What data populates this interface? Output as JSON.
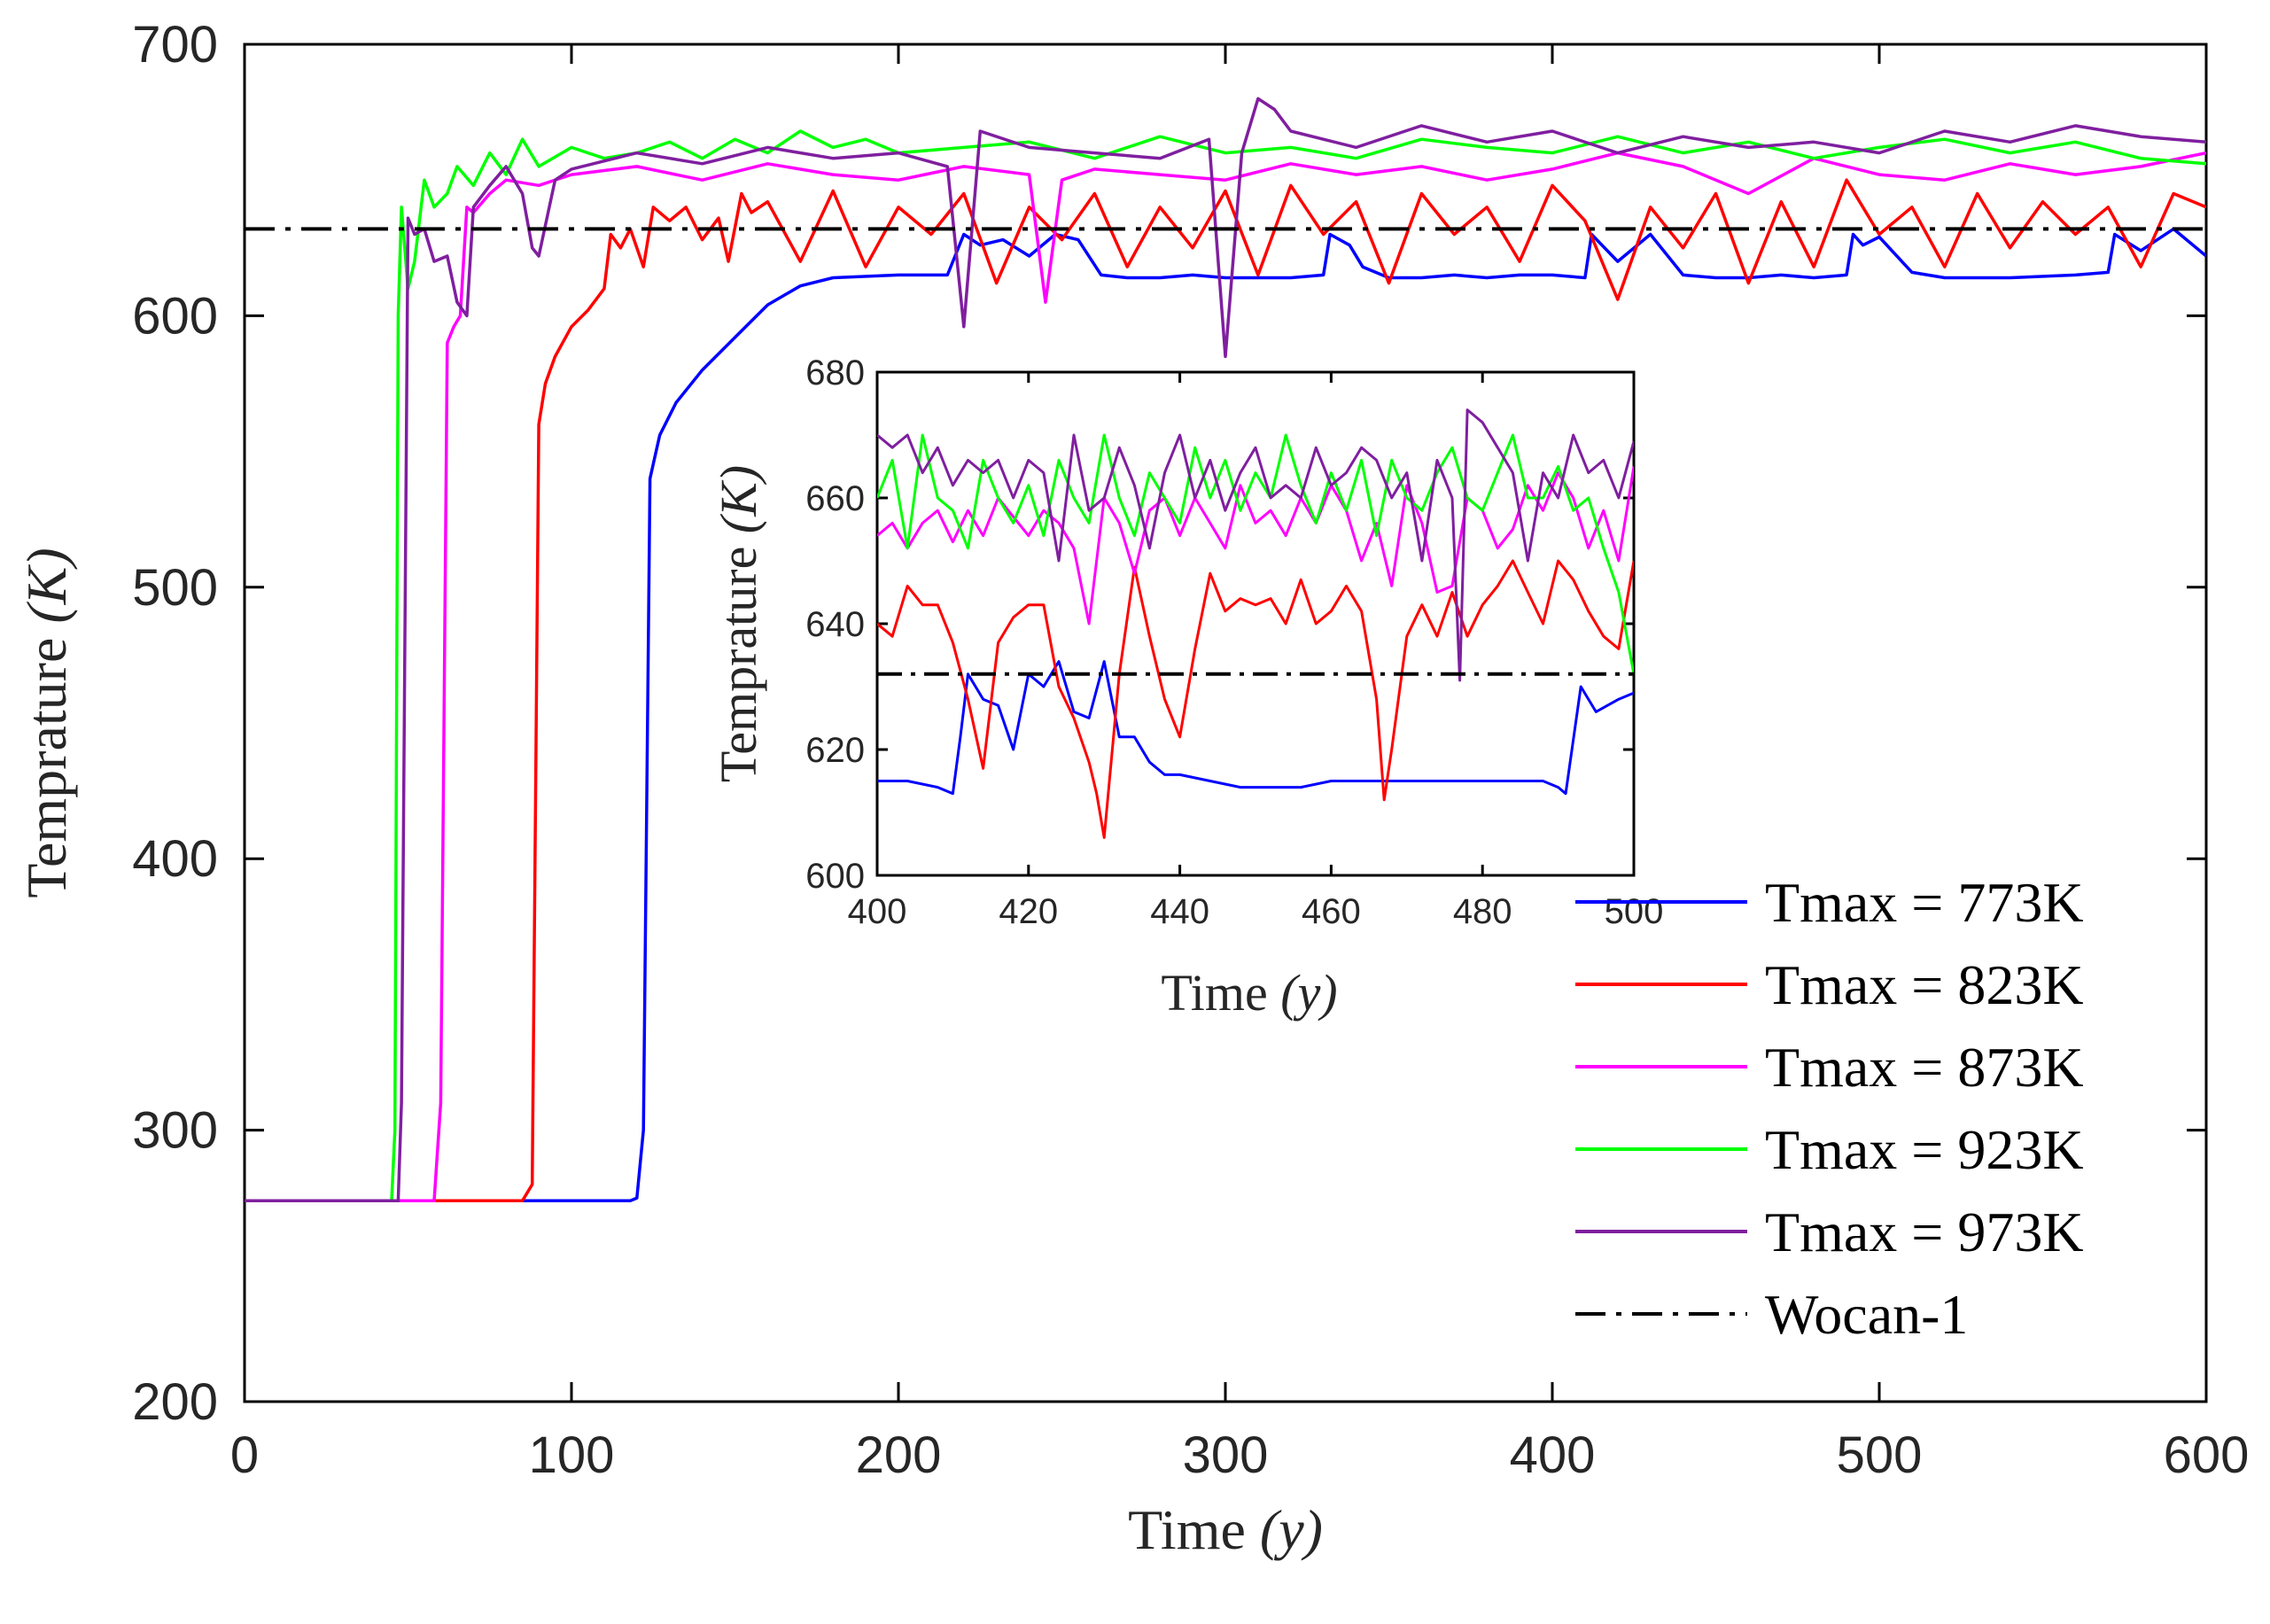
{
  "chart_data": [
    {
      "type": "line",
      "xlabel": "Time",
      "xlabel_unit": "(y)",
      "ylabel": "Temprature",
      "ylabel_unit": "(K)",
      "xlim": [
        0,
        600
      ],
      "ylim": [
        200,
        700
      ],
      "xticks": [
        0,
        100,
        200,
        300,
        400,
        500,
        600
      ],
      "yticks": [
        200,
        300,
        400,
        500,
        600,
        700
      ],
      "grid": false,
      "legend_position": "bottom-right",
      "reference_line": {
        "name": "Wocan-1",
        "y": 632,
        "color": "#000000",
        "style": "dash-dot"
      },
      "series": [
        {
          "name": "Tmax = 773K",
          "color": "#0000ff",
          "x": [
            0,
            118,
            120,
            122,
            124,
            127,
            132,
            140,
            150,
            160,
            170,
            180,
            200,
            215,
            220,
            225,
            232,
            240,
            248,
            255,
            262,
            270,
            280,
            290,
            300,
            320,
            330,
            332,
            338,
            342,
            350,
            360,
            370,
            380,
            390,
            400,
            410,
            412,
            420,
            430,
            440,
            450,
            460,
            470,
            480,
            490,
            492,
            495,
            500,
            510,
            520,
            540,
            560,
            570,
            572,
            580,
            590,
            600
          ],
          "y": [
            274,
            274,
            275,
            300,
            540,
            556,
            568,
            580,
            592,
            604,
            611,
            614,
            615,
            615,
            630,
            626,
            628,
            622,
            630,
            628,
            615,
            614,
            614,
            615,
            614,
            614,
            615,
            630,
            626,
            618,
            614,
            614,
            615,
            614,
            615,
            615,
            614,
            630,
            620,
            630,
            615,
            614,
            614,
            615,
            614,
            615,
            630,
            626,
            629,
            616,
            614,
            614,
            615,
            616,
            630,
            624,
            632,
            622
          ]
        },
        {
          "name": "Tmax = 823K",
          "color": "#ff0000",
          "x": [
            0,
            85,
            88,
            90,
            92,
            95,
            100,
            105,
            110,
            112,
            115,
            118,
            122,
            125,
            130,
            135,
            140,
            145,
            148,
            152,
            155,
            160,
            170,
            180,
            190,
            200,
            210,
            220,
            230,
            240,
            250,
            260,
            270,
            280,
            290,
            300,
            310,
            320,
            330,
            340,
            350,
            360,
            370,
            380,
            390,
            400,
            410,
            420,
            430,
            440,
            450,
            460,
            470,
            480,
            490,
            500,
            510,
            520,
            530,
            540,
            550,
            560,
            570,
            580,
            590,
            600
          ],
          "y": [
            274,
            274,
            280,
            560,
            575,
            585,
            596,
            602,
            610,
            630,
            625,
            632,
            618,
            640,
            635,
            640,
            628,
            636,
            620,
            645,
            638,
            642,
            620,
            646,
            618,
            640,
            630,
            645,
            612,
            640,
            628,
            645,
            618,
            640,
            625,
            646,
            615,
            648,
            630,
            642,
            612,
            645,
            630,
            640,
            620,
            648,
            635,
            606,
            640,
            625,
            645,
            612,
            642,
            618,
            650,
            630,
            640,
            618,
            645,
            625,
            642,
            630,
            640,
            618,
            645,
            640
          ]
        },
        {
          "name": "Tmax = 873K",
          "color": "#ff00ff",
          "x": [
            0,
            58,
            60,
            62,
            64,
            66,
            68,
            70,
            75,
            80,
            90,
            100,
            120,
            140,
            160,
            180,
            200,
            220,
            240,
            245,
            250,
            260,
            280,
            300,
            320,
            340,
            360,
            380,
            400,
            420,
            440,
            460,
            480,
            500,
            520,
            540,
            560,
            580,
            600
          ],
          "y": [
            274,
            274,
            310,
            590,
            596,
            600,
            640,
            638,
            645,
            650,
            648,
            652,
            655,
            650,
            656,
            652,
            650,
            655,
            652,
            605,
            650,
            654,
            652,
            650,
            656,
            652,
            655,
            650,
            654,
            660,
            655,
            645,
            658,
            652,
            650,
            656,
            652,
            655,
            660
          ]
        },
        {
          "name": "Tmax = 923K",
          "color": "#00ff00",
          "x": [
            0,
            45,
            46,
            47,
            48,
            50,
            52,
            55,
            58,
            62,
            65,
            70,
            75,
            80,
            85,
            90,
            100,
            110,
            120,
            130,
            140,
            150,
            160,
            170,
            180,
            190,
            200,
            220,
            240,
            260,
            280,
            300,
            320,
            340,
            360,
            380,
            400,
            420,
            440,
            460,
            480,
            500,
            520,
            540,
            560,
            580,
            600
          ],
          "y": [
            274,
            274,
            300,
            600,
            640,
            610,
            620,
            650,
            640,
            645,
            655,
            648,
            660,
            652,
            665,
            655,
            662,
            658,
            660,
            664,
            658,
            665,
            660,
            668,
            662,
            665,
            660,
            662,
            664,
            658,
            666,
            660,
            662,
            658,
            665,
            662,
            660,
            666,
            660,
            664,
            658,
            662,
            665,
            660,
            664,
            658,
            656
          ]
        },
        {
          "name": "Tmax = 973K",
          "color": "#7f1f9f",
          "x": [
            0,
            47,
            48,
            50,
            52,
            55,
            58,
            62,
            65,
            68,
            70,
            75,
            80,
            85,
            88,
            90,
            95,
            100,
            120,
            140,
            160,
            180,
            200,
            215,
            220,
            225,
            240,
            260,
            280,
            295,
            300,
            305,
            310,
            315,
            320,
            340,
            360,
            380,
            400,
            420,
            440,
            460,
            480,
            500,
            520,
            540,
            560,
            580,
            600
          ],
          "y": [
            274,
            274,
            310,
            636,
            630,
            632,
            620,
            622,
            605,
            600,
            640,
            648,
            655,
            645,
            625,
            622,
            650,
            654,
            660,
            656,
            662,
            658,
            660,
            655,
            596,
            668,
            662,
            660,
            658,
            665,
            585,
            660,
            680,
            676,
            668,
            662,
            670,
            664,
            668,
            660,
            666,
            662,
            664,
            660,
            668,
            664,
            670,
            666,
            664
          ]
        }
      ]
    },
    {
      "type": "line",
      "xlabel": "Time",
      "xlabel_unit": "(y)",
      "ylabel": "Temprature",
      "ylabel_unit": "(K)",
      "xlim": [
        400,
        500
      ],
      "ylim": [
        600,
        680
      ],
      "xticks": [
        400,
        420,
        440,
        460,
        480,
        500
      ],
      "yticks": [
        600,
        620,
        640,
        660,
        680
      ],
      "grid": false,
      "reference_line": {
        "y": 632,
        "color": "#000000",
        "style": "dash-dot"
      },
      "series": [
        {
          "name": "Tmax = 773K",
          "color": "#0000ff",
          "x": [
            400,
            404,
            408,
            410,
            411,
            412,
            414,
            416,
            418,
            420,
            422,
            424,
            426,
            428,
            430,
            432,
            434,
            436,
            438,
            440,
            444,
            448,
            452,
            456,
            460,
            464,
            468,
            472,
            476,
            480,
            484,
            488,
            490,
            491,
            493,
            495,
            498,
            500
          ],
          "y": [
            615,
            615,
            614,
            613,
            622,
            632,
            628,
            627,
            620,
            632,
            630,
            634,
            626,
            625,
            634,
            622,
            622,
            618,
            616,
            616,
            615,
            614,
            614,
            614,
            615,
            615,
            615,
            615,
            615,
            615,
            615,
            615,
            614,
            613,
            630,
            626,
            628,
            629
          ]
        },
        {
          "name": "Tmax = 823K",
          "color": "#ff0000",
          "x": [
            400,
            402,
            404,
            406,
            408,
            410,
            412,
            414,
            416,
            418,
            420,
            422,
            424,
            426,
            428,
            429,
            430,
            432,
            434,
            436,
            438,
            440,
            442,
            444,
            446,
            448,
            450,
            452,
            454,
            456,
            458,
            460,
            462,
            464,
            466,
            467,
            468,
            470,
            472,
            474,
            476,
            478,
            480,
            482,
            484,
            486,
            488,
            490,
            492,
            494,
            496,
            498,
            500
          ],
          "y": [
            640,
            638,
            646,
            643,
            643,
            637,
            628,
            617,
            637,
            641,
            643,
            643,
            630,
            625,
            618,
            613,
            606,
            632,
            649,
            638,
            628,
            622,
            636,
            648,
            642,
            644,
            643,
            644,
            640,
            647,
            640,
            642,
            646,
            642,
            628,
            612,
            620,
            638,
            643,
            638,
            645,
            638,
            643,
            646,
            650,
            645,
            640,
            650,
            647,
            642,
            638,
            636,
            650
          ]
        },
        {
          "name": "Tmax = 873K",
          "color": "#ff00ff",
          "x": [
            400,
            402,
            404,
            406,
            408,
            410,
            412,
            414,
            416,
            418,
            420,
            422,
            424,
            426,
            428,
            430,
            432,
            434,
            436,
            438,
            440,
            442,
            444,
            446,
            448,
            450,
            452,
            454,
            456,
            458,
            460,
            462,
            464,
            466,
            468,
            470,
            472,
            474,
            476,
            478,
            480,
            482,
            484,
            486,
            488,
            490,
            492,
            494,
            496,
            498,
            500
          ],
          "y": [
            654,
            656,
            652,
            656,
            658,
            653,
            658,
            654,
            660,
            657,
            654,
            658,
            656,
            652,
            640,
            660,
            656,
            648,
            658,
            660,
            654,
            660,
            656,
            652,
            662,
            656,
            658,
            654,
            660,
            656,
            662,
            658,
            650,
            656,
            646,
            662,
            656,
            645,
            646,
            660,
            658,
            652,
            655,
            662,
            658,
            664,
            660,
            652,
            658,
            650,
            665
          ]
        },
        {
          "name": "Tmax = 923K",
          "color": "#00ff00",
          "x": [
            400,
            402,
            404,
            406,
            408,
            410,
            412,
            414,
            416,
            418,
            420,
            422,
            424,
            426,
            428,
            430,
            432,
            434,
            436,
            438,
            440,
            442,
            444,
            446,
            448,
            450,
            452,
            454,
            456,
            458,
            460,
            462,
            464,
            466,
            468,
            470,
            472,
            474,
            476,
            478,
            480,
            482,
            484,
            486,
            488,
            490,
            492,
            494,
            496,
            498,
            500
          ],
          "y": [
            660,
            666,
            652,
            670,
            660,
            658,
            652,
            666,
            660,
            656,
            662,
            654,
            666,
            660,
            656,
            670,
            660,
            654,
            664,
            660,
            656,
            668,
            660,
            666,
            658,
            664,
            660,
            670,
            662,
            656,
            664,
            658,
            666,
            654,
            666,
            660,
            658,
            664,
            668,
            660,
            658,
            664,
            670,
            660,
            660,
            665,
            658,
            660,
            652,
            645,
            632
          ]
        },
        {
          "name": "Tmax = 973K",
          "color": "#7f1f9f",
          "x": [
            400,
            402,
            404,
            406,
            408,
            410,
            412,
            414,
            416,
            418,
            420,
            422,
            424,
            426,
            428,
            430,
            432,
            434,
            436,
            438,
            440,
            442,
            444,
            446,
            448,
            450,
            452,
            454,
            456,
            458,
            460,
            462,
            464,
            466,
            468,
            470,
            472,
            474,
            476,
            477,
            478,
            480,
            482,
            484,
            486,
            488,
            490,
            492,
            494,
            496,
            498,
            500
          ],
          "y": [
            670,
            668,
            670,
            664,
            668,
            662,
            666,
            664,
            666,
            660,
            666,
            664,
            650,
            670,
            658,
            660,
            668,
            662,
            652,
            664,
            670,
            660,
            666,
            658,
            664,
            668,
            660,
            662,
            660,
            668,
            662,
            664,
            668,
            666,
            660,
            664,
            650,
            666,
            660,
            631,
            674,
            672,
            668,
            664,
            650,
            664,
            660,
            670,
            664,
            666,
            660,
            669
          ]
        }
      ]
    }
  ]
}
